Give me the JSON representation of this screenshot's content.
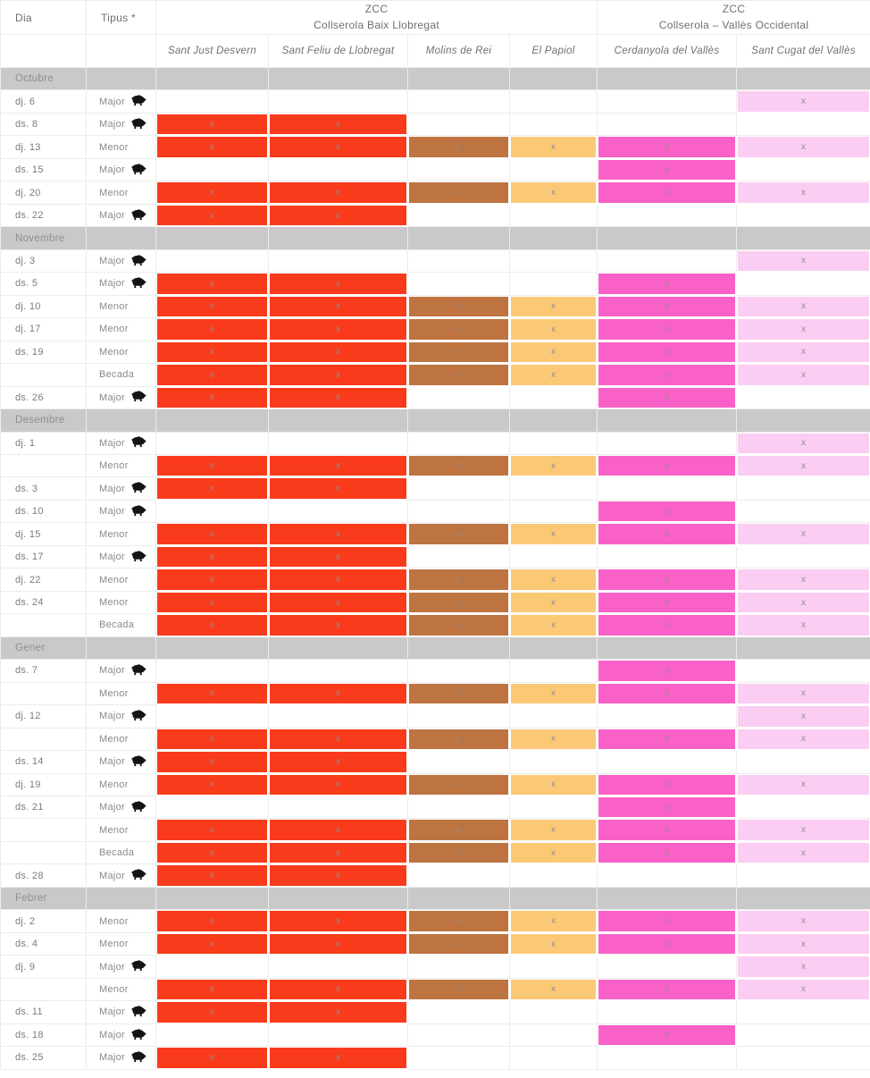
{
  "header": {
    "dia": "Dia",
    "tipus": "Tipus *",
    "zone1_line1": "ZCC",
    "zone1_line2": "Collserola Baix Llobregat",
    "zone2_line1": "ZCC",
    "zone2_line2": "Collserola – Vallès Occidental",
    "municipalities": [
      "Sant Just Desvern",
      "Sant Feliu de Llobregat",
      "Molins de Rei",
      "El Papiol",
      "Cerdanyola del Vallès",
      "Sant Cugat del Vallès"
    ]
  },
  "mark": "x",
  "icons": {
    "boar": "wild-boar-icon"
  },
  "colors": {
    "cell_colors_by_column": [
      "#f93b1c",
      "#f93b1c",
      "#bd7441",
      "#fbc976",
      "#f961c8",
      "#fbcdf3"
    ],
    "month_row_bg": "#c9c9c9",
    "mark_text": "#8e8e8e",
    "border": "#ececec"
  },
  "months": [
    {
      "name": "Octubre",
      "rows": [
        {
          "day": "dj. 6",
          "type": "Major",
          "boar": true,
          "marks": [
            0,
            0,
            0,
            0,
            0,
            1
          ]
        },
        {
          "day": "ds. 8",
          "type": "Major",
          "boar": true,
          "marks": [
            1,
            1,
            0,
            0,
            0,
            0
          ]
        },
        {
          "day": "dj. 13",
          "type": "Menor",
          "boar": false,
          "marks": [
            1,
            1,
            1,
            1,
            1,
            1
          ]
        },
        {
          "day": "ds. 15",
          "type": "Major",
          "boar": true,
          "marks": [
            0,
            0,
            0,
            0,
            1,
            0
          ]
        },
        {
          "day": "dj. 20",
          "type": "Menor",
          "boar": false,
          "marks": [
            1,
            1,
            1,
            1,
            1,
            1
          ]
        },
        {
          "day": "ds. 22",
          "type": "Major",
          "boar": true,
          "marks": [
            1,
            1,
            0,
            0,
            0,
            0
          ]
        }
      ]
    },
    {
      "name": "Novembre",
      "rows": [
        {
          "day": "dj. 3",
          "type": "Major",
          "boar": true,
          "marks": [
            0,
            0,
            0,
            0,
            0,
            1
          ]
        },
        {
          "day": "ds. 5",
          "type": "Major",
          "boar": true,
          "marks": [
            1,
            1,
            0,
            0,
            1,
            0
          ]
        },
        {
          "day": "dj. 10",
          "type": "Menor",
          "boar": false,
          "marks": [
            1,
            1,
            1,
            1,
            1,
            1
          ]
        },
        {
          "day": "dj. 17",
          "type": "Menor",
          "boar": false,
          "marks": [
            1,
            1,
            1,
            1,
            1,
            1
          ]
        },
        {
          "day": "ds. 19",
          "type": "Menor",
          "boar": false,
          "marks": [
            1,
            1,
            1,
            1,
            1,
            1
          ]
        },
        {
          "day": "",
          "type": "Becada",
          "boar": false,
          "marks": [
            1,
            1,
            1,
            1,
            1,
            1
          ]
        },
        {
          "day": "ds. 26",
          "type": "Major",
          "boar": true,
          "marks": [
            1,
            1,
            0,
            0,
            1,
            0
          ]
        }
      ]
    },
    {
      "name": "Desembre",
      "rows": [
        {
          "day": "dj. 1",
          "type": "Major",
          "boar": true,
          "marks": [
            0,
            0,
            0,
            0,
            0,
            1
          ]
        },
        {
          "day": "",
          "type": "Menor",
          "boar": false,
          "marks": [
            1,
            1,
            1,
            1,
            1,
            1
          ]
        },
        {
          "day": "ds. 3",
          "type": "Major",
          "boar": true,
          "marks": [
            1,
            1,
            0,
            0,
            0,
            0
          ]
        },
        {
          "day": "ds. 10",
          "type": "Major",
          "boar": true,
          "marks": [
            0,
            0,
            0,
            0,
            1,
            0
          ]
        },
        {
          "day": "dj. 15",
          "type": "Menor",
          "boar": false,
          "marks": [
            1,
            1,
            1,
            1,
            1,
            1
          ]
        },
        {
          "day": "ds. 17",
          "type": "Major",
          "boar": true,
          "marks": [
            1,
            1,
            0,
            0,
            0,
            0
          ]
        },
        {
          "day": "dj. 22",
          "type": "Menor",
          "boar": false,
          "marks": [
            1,
            1,
            1,
            1,
            1,
            1
          ]
        },
        {
          "day": "ds. 24",
          "type": "Menor",
          "boar": false,
          "marks": [
            1,
            1,
            1,
            1,
            1,
            1
          ]
        },
        {
          "day": "",
          "type": "Becada",
          "boar": false,
          "marks": [
            1,
            1,
            1,
            1,
            1,
            1
          ]
        }
      ]
    },
    {
      "name": "Gener",
      "rows": [
        {
          "day": "ds. 7",
          "type": "Major",
          "boar": true,
          "marks": [
            0,
            0,
            0,
            0,
            1,
            0
          ]
        },
        {
          "day": "",
          "type": "Menor",
          "boar": false,
          "marks": [
            1,
            1,
            1,
            1,
            1,
            1
          ]
        },
        {
          "day": "dj. 12",
          "type": "Major",
          "boar": true,
          "marks": [
            0,
            0,
            0,
            0,
            0,
            1
          ]
        },
        {
          "day": "",
          "type": "Menor",
          "boar": false,
          "marks": [
            1,
            1,
            1,
            1,
            1,
            1
          ]
        },
        {
          "day": "ds. 14",
          "type": "Major",
          "boar": true,
          "marks": [
            1,
            1,
            0,
            0,
            0,
            0
          ]
        },
        {
          "day": "dj. 19",
          "type": "Menor",
          "boar": false,
          "marks": [
            1,
            1,
            1,
            1,
            1,
            1
          ]
        },
        {
          "day": "ds. 21",
          "type": "Major",
          "boar": true,
          "marks": [
            0,
            0,
            0,
            0,
            1,
            0
          ]
        },
        {
          "day": "",
          "type": "Menor",
          "boar": false,
          "marks": [
            1,
            1,
            1,
            1,
            1,
            1
          ]
        },
        {
          "day": "",
          "type": "Becada",
          "boar": false,
          "marks": [
            1,
            1,
            1,
            1,
            1,
            1
          ]
        },
        {
          "day": "ds. 28",
          "type": "Major",
          "boar": true,
          "marks": [
            1,
            1,
            0,
            0,
            0,
            0
          ]
        }
      ]
    },
    {
      "name": "Febrer",
      "rows": [
        {
          "day": "dj. 2",
          "type": "Menor",
          "boar": false,
          "marks": [
            1,
            1,
            1,
            1,
            1,
            1
          ]
        },
        {
          "day": "ds. 4",
          "type": "Menor",
          "boar": false,
          "marks": [
            1,
            1,
            1,
            1,
            1,
            1
          ]
        },
        {
          "day": "dj. 9",
          "type": "Major",
          "boar": true,
          "marks": [
            0,
            0,
            0,
            0,
            0,
            1
          ]
        },
        {
          "day": "",
          "type": "Menor",
          "boar": false,
          "marks": [
            1,
            1,
            1,
            1,
            1,
            1
          ]
        },
        {
          "day": "ds. 11",
          "type": "Major",
          "boar": true,
          "marks": [
            1,
            1,
            0,
            0,
            0,
            0
          ]
        },
        {
          "day": "ds. 18",
          "type": "Major",
          "boar": true,
          "marks": [
            0,
            0,
            0,
            0,
            1,
            0
          ]
        },
        {
          "day": "ds. 25",
          "type": "Major",
          "boar": true,
          "marks": [
            1,
            1,
            0,
            0,
            0,
            0
          ]
        }
      ]
    }
  ]
}
